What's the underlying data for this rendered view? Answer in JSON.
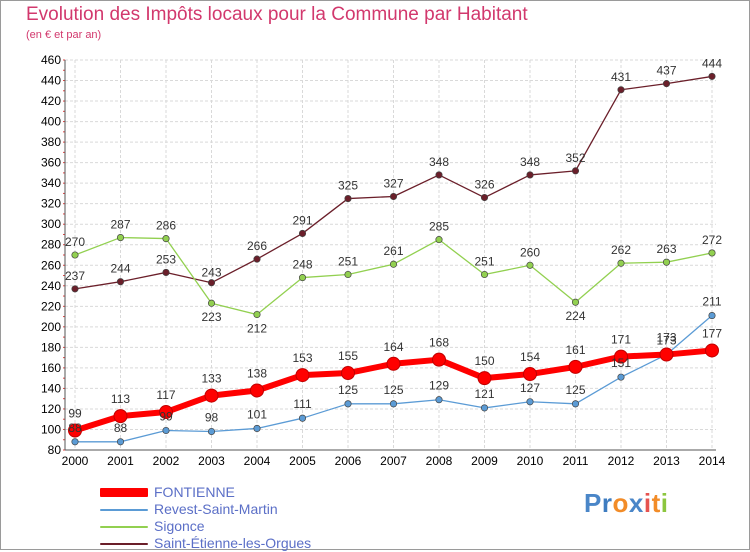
{
  "chart_data": {
    "type": "line",
    "title": "Evolution des Impôts locaux pour la Commune par Habitant",
    "subtitle": "(en € et par an)",
    "categories": [
      "2000",
      "2001",
      "2002",
      "2003",
      "2004",
      "2005",
      "2006",
      "2007",
      "2008",
      "2009",
      "2010",
      "2011",
      "2012",
      "2013",
      "2014"
    ],
    "ylim": [
      80,
      460
    ],
    "yticks": [
      80,
      100,
      120,
      140,
      160,
      180,
      200,
      220,
      240,
      260,
      280,
      300,
      320,
      340,
      360,
      380,
      400,
      420,
      440,
      460
    ],
    "grid": true,
    "legend_position": "bottom-left",
    "series": [
      {
        "name": "FONTIENNE",
        "color": "#ff0000",
        "values": [
          99,
          113,
          117,
          133,
          138,
          153,
          155,
          164,
          168,
          150,
          154,
          161,
          171,
          173,
          177
        ]
      },
      {
        "name": "Revest-Saint-Martin",
        "color": "#5b9bd5",
        "values": [
          88,
          88,
          99,
          98,
          101,
          111,
          125,
          125,
          129,
          121,
          127,
          125,
          151,
          173,
          211
        ]
      },
      {
        "name": "Sigonce",
        "color": "#92d050",
        "values": [
          270,
          287,
          286,
          223,
          212,
          248,
          251,
          261,
          285,
          251,
          260,
          224,
          262,
          263,
          272
        ]
      },
      {
        "name": "Saint-Étienne-les-Orgues",
        "color": "#6b1f2a",
        "values": [
          237,
          244,
          253,
          243,
          266,
          291,
          325,
          327,
          348,
          326,
          348,
          352,
          431,
          437,
          444
        ]
      }
    ]
  },
  "logo": {
    "text": "Proxiti",
    "letters": [
      "P",
      "r",
      "o",
      "x",
      "i",
      "t",
      "i"
    ],
    "colors": [
      "#4a86c8",
      "#3e7cc0",
      "#f28c28",
      "#4a86c8",
      "#e6534f",
      "#f28c28",
      "#8cc63f"
    ]
  }
}
